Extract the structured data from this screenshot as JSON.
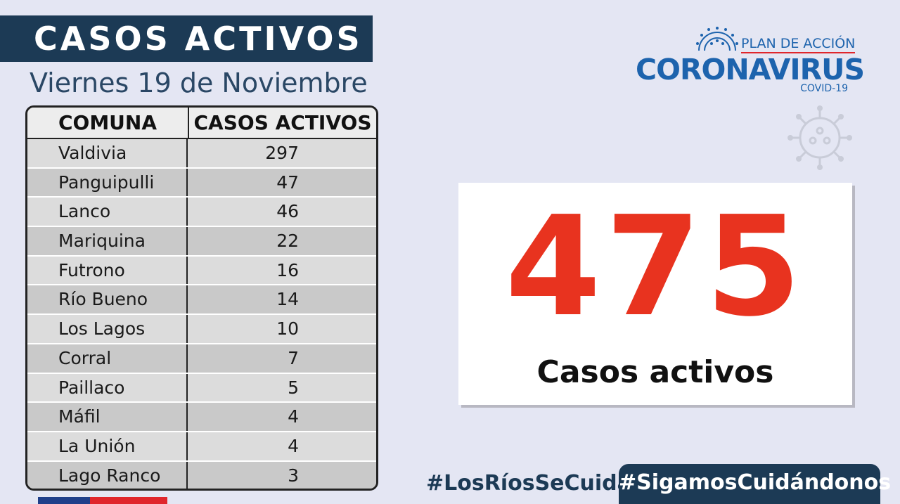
{
  "header": {
    "title": "CASOS ACTIVOS",
    "date": "Viernes 19 de Noviembre"
  },
  "table": {
    "columns": [
      "COMUNA",
      "CASOS ACTIVOS"
    ],
    "rows": [
      {
        "comuna": "Valdivia",
        "casos": "297"
      },
      {
        "comuna": "Panguipulli",
        "casos": "47"
      },
      {
        "comuna": "Lanco",
        "casos": "46"
      },
      {
        "comuna": "Mariquina",
        "casos": "22"
      },
      {
        "comuna": "Futrono",
        "casos": "16"
      },
      {
        "comuna": "Río Bueno",
        "casos": "14"
      },
      {
        "comuna": "Los Lagos",
        "casos": "10"
      },
      {
        "comuna": "Corral",
        "casos": "7"
      },
      {
        "comuna": "Paillaco",
        "casos": "5"
      },
      {
        "comuna": "Máfil",
        "casos": "4"
      },
      {
        "comuna": "La Unión",
        "casos": "4"
      },
      {
        "comuna": "Lago Ranco",
        "casos": "3"
      }
    ]
  },
  "logo": {
    "plan": "PLAN DE ACCIÓN",
    "main": "CORONAVIRUS",
    "sub": "COVID-19"
  },
  "total": {
    "number": "475",
    "label": "Casos activos"
  },
  "footer": {
    "hashtag_left": "#LosRíosSeCuida",
    "hashtag_right": "#SigamosCuidándonos"
  },
  "colors": {
    "navy": "#1c3a55",
    "accent_red": "#e8331f",
    "logo_blue": "#1d63ad",
    "background": "#e4e6f3"
  },
  "icons": [
    "coronavirus-icon"
  ]
}
